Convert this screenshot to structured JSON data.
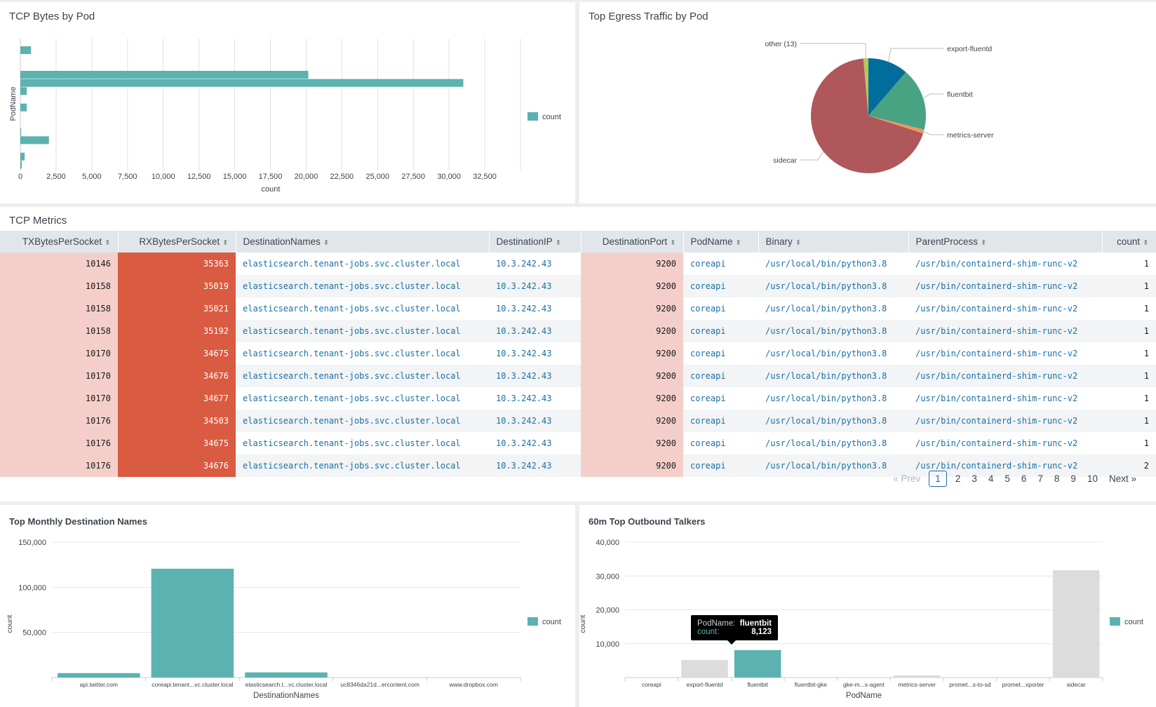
{
  "panels": {
    "tcp_bytes": {
      "title": "TCP Bytes by Pod"
    },
    "egress": {
      "title": "Top Egress Traffic by Pod"
    },
    "tcp_metrics": {
      "title": "TCP Metrics"
    },
    "monthly": {
      "title": "Top Monthly Destination Names"
    },
    "outbound": {
      "title": "60m Top Outbound Talkers"
    }
  },
  "colors": {
    "teal": "#5cb2b0",
    "inactive": "#dcdcdc",
    "rx_heat": "#d95b42",
    "tx_heat": "#f4cfca",
    "link": "#1a6fa3"
  },
  "chart_data": [
    {
      "type": "bar",
      "orientation": "horizontal",
      "title": "TCP Bytes by Pod",
      "xlabel": "count",
      "ylabel": "PodName",
      "xlim": [
        0,
        35000
      ],
      "xticks": [
        "0",
        "2,500",
        "5,000",
        "7,500",
        "10,000",
        "12,500",
        "15,000",
        "17,500",
        "20,000",
        "22,500",
        "25,000",
        "27,500",
        "30,000",
        "32,500"
      ],
      "legend": "right",
      "series": [
        {
          "name": "count",
          "values": [
            750,
            0,
            0,
            20150,
            31000,
            450,
            0,
            450,
            0,
            0,
            60,
            2000,
            0,
            300,
            100
          ]
        }
      ]
    },
    {
      "type": "pie",
      "title": "Top Egress Traffic by Pod",
      "slices": [
        {
          "label": "export-fluentd",
          "value": 11.3,
          "color": "#006d9c"
        },
        {
          "label": "fluentbit",
          "value": 17.6,
          "color": "#48a382"
        },
        {
          "label": "metrics-server",
          "value": 1.1,
          "color": "#ec9960"
        },
        {
          "label": "sidecar",
          "value": 68.6,
          "color": "#af575a"
        },
        {
          "label": "other (13)",
          "value": 1.4,
          "color": "#b6c75a"
        }
      ]
    },
    {
      "type": "bar",
      "title": "Top Monthly Destination Names",
      "xlabel": "DestinationNames",
      "ylabel": "count",
      "ylim": [
        0,
        150000
      ],
      "yticks": [
        "50,000",
        "100,000",
        "150,000"
      ],
      "legend": "right",
      "categories": [
        "api.twitter.com",
        "coreapi.tenant...vc.cluster.local",
        "elasticsearch.t...vc.cluster.local",
        "uc8346da21d...ercontent.com",
        "www.dropbox.com"
      ],
      "series": [
        {
          "name": "count",
          "values": [
            4900,
            120600,
            5700,
            0,
            0
          ]
        }
      ]
    },
    {
      "type": "bar",
      "title": "60m Top Outbound Talkers",
      "xlabel": "PodName",
      "ylabel": "count",
      "ylim": [
        0,
        40000
      ],
      "yticks": [
        "10,000",
        "20,000",
        "30,000",
        "40,000"
      ],
      "legend": "right",
      "categories": [
        "coreapi",
        "export-fluentd",
        "fluentbit",
        "fluentbit-gke",
        "gke-m...s-agent",
        "metrics-server",
        "promet...s-to-sd",
        "promet...xporter",
        "sidecar"
      ],
      "series": [
        {
          "name": "count",
          "values": [
            0,
            5200,
            8123,
            0,
            0,
            650,
            0,
            0,
            31700
          ]
        }
      ],
      "highlighted": "fluentbit",
      "tooltip": {
        "key1": "PodName:",
        "val1": "fluentbit",
        "key2": "count:",
        "val2": "8,123"
      }
    }
  ],
  "table": {
    "columns": [
      "TXBytesPerSocket",
      "RXBytesPerSocket",
      "DestinationNames",
      "DestinationIP",
      "DestinationPort",
      "PodName",
      "Binary",
      "ParentProcess",
      "count"
    ],
    "rows": [
      [
        "10146",
        "35363",
        "elasticsearch.tenant-jobs.svc.cluster.local",
        "10.3.242.43",
        "9200",
        "coreapi",
        "/usr/local/bin/python3.8",
        "/usr/bin/containerd-shim-runc-v2",
        "1"
      ],
      [
        "10158",
        "35019",
        "elasticsearch.tenant-jobs.svc.cluster.local",
        "10.3.242.43",
        "9200",
        "coreapi",
        "/usr/local/bin/python3.8",
        "/usr/bin/containerd-shim-runc-v2",
        "1"
      ],
      [
        "10158",
        "35021",
        "elasticsearch.tenant-jobs.svc.cluster.local",
        "10.3.242.43",
        "9200",
        "coreapi",
        "/usr/local/bin/python3.8",
        "/usr/bin/containerd-shim-runc-v2",
        "1"
      ],
      [
        "10158",
        "35192",
        "elasticsearch.tenant-jobs.svc.cluster.local",
        "10.3.242.43",
        "9200",
        "coreapi",
        "/usr/local/bin/python3.8",
        "/usr/bin/containerd-shim-runc-v2",
        "1"
      ],
      [
        "10170",
        "34675",
        "elasticsearch.tenant-jobs.svc.cluster.local",
        "10.3.242.43",
        "9200",
        "coreapi",
        "/usr/local/bin/python3.8",
        "/usr/bin/containerd-shim-runc-v2",
        "1"
      ],
      [
        "10170",
        "34676",
        "elasticsearch.tenant-jobs.svc.cluster.local",
        "10.3.242.43",
        "9200",
        "coreapi",
        "/usr/local/bin/python3.8",
        "/usr/bin/containerd-shim-runc-v2",
        "1"
      ],
      [
        "10170",
        "34677",
        "elasticsearch.tenant-jobs.svc.cluster.local",
        "10.3.242.43",
        "9200",
        "coreapi",
        "/usr/local/bin/python3.8",
        "/usr/bin/containerd-shim-runc-v2",
        "1"
      ],
      [
        "10176",
        "34503",
        "elasticsearch.tenant-jobs.svc.cluster.local",
        "10.3.242.43",
        "9200",
        "coreapi",
        "/usr/local/bin/python3.8",
        "/usr/bin/containerd-shim-runc-v2",
        "1"
      ],
      [
        "10176",
        "34675",
        "elasticsearch.tenant-jobs.svc.cluster.local",
        "10.3.242.43",
        "9200",
        "coreapi",
        "/usr/local/bin/python3.8",
        "/usr/bin/containerd-shim-runc-v2",
        "1"
      ],
      [
        "10176",
        "34676",
        "elasticsearch.tenant-jobs.svc.cluster.local",
        "10.3.242.43",
        "9200",
        "coreapi",
        "/usr/local/bin/python3.8",
        "/usr/bin/containerd-shim-runc-v2",
        "2"
      ]
    ]
  },
  "pagination": {
    "prev": "« Prev",
    "pages": [
      "1",
      "2",
      "3",
      "4",
      "5",
      "6",
      "7",
      "8",
      "9",
      "10"
    ],
    "current": "1",
    "next": "Next »"
  }
}
